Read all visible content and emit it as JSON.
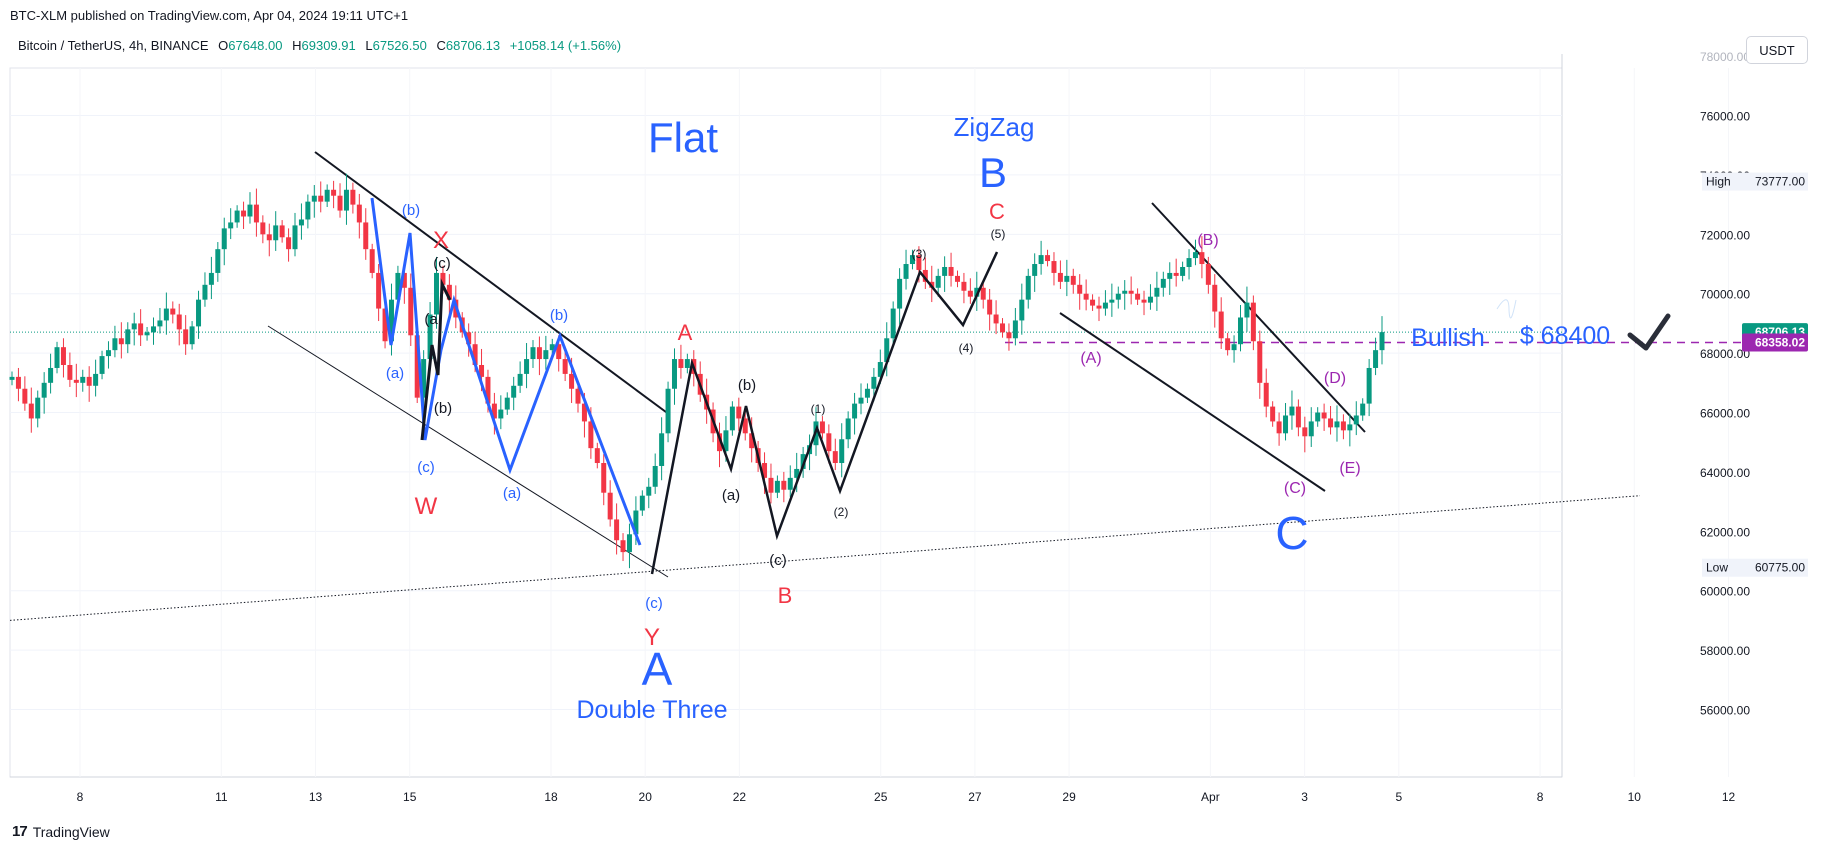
{
  "header": {
    "published": "BTC-XLM published on TradingView.com, Apr 04, 2024 19:11 UTC+1",
    "symbol": "Bitcoin / TetherUS, 4h, BINANCE",
    "o_label": "O",
    "o": "67648.00",
    "h_label": "H",
    "h": "69309.91",
    "l_label": "L",
    "l": "67526.50",
    "c_label": "C",
    "c": "68706.13",
    "change": "+1058.14 (+1.56%)",
    "currency": "USDT"
  },
  "footer": {
    "brand": "TradingView",
    "logo": "17"
  },
  "colors": {
    "up": "#089981",
    "down": "#f23645",
    "blue": "#2962ff",
    "red": "#f23645",
    "purple": "#9c27b0"
  },
  "chart_data": {
    "type": "candlestick",
    "title": "Bitcoin / TetherUS, 4h, BINANCE",
    "ylim": [
      53000,
      78500
    ],
    "y_ticks": [
      "76000.00",
      "74000.00",
      "72000.00",
      "70000.00",
      "68000.00",
      "66000.00",
      "64000.00",
      "62000.00",
      "60000.00",
      "58000.00",
      "56000.00"
    ],
    "y_tick_values": [
      76000,
      74000,
      72000,
      70000,
      68000,
      66000,
      64000,
      62000,
      60000,
      58000,
      56000
    ],
    "top_partial_tick": "78000.00",
    "x_ticks": [
      {
        "label": "8",
        "day": 8
      },
      {
        "label": "11",
        "day": 11
      },
      {
        "label": "13",
        "day": 13
      },
      {
        "label": "15",
        "day": 15
      },
      {
        "label": "18",
        "day": 18
      },
      {
        "label": "20",
        "day": 20
      },
      {
        "label": "22",
        "day": 22
      },
      {
        "label": "25",
        "day": 25
      },
      {
        "label": "27",
        "day": 27
      },
      {
        "label": "29",
        "day": 29
      },
      {
        "label": "Apr",
        "day": 32
      },
      {
        "label": "3",
        "day": 34
      },
      {
        "label": "5",
        "day": 36
      },
      {
        "label": "8",
        "day": 39
      },
      {
        "label": "10",
        "day": 41
      },
      {
        "label": "12",
        "day": 43
      }
    ],
    "x_range_days": [
      6.4,
      43.2
    ],
    "price_tags": [
      {
        "text": "High",
        "value": "73777.00",
        "price": 73777,
        "kind": "high"
      },
      {
        "text": "Low",
        "value": "60775.00",
        "price": 60775,
        "kind": "low"
      },
      {
        "text": "",
        "value": "68706.13",
        "price": 68706,
        "kind": "last"
      },
      {
        "text": "",
        "value": "68358.02",
        "price": 68358,
        "kind": "level"
      }
    ],
    "last_price": 68706.13,
    "level_price": 68358.02,
    "closes": [
      67200,
      66800,
      66300,
      65800,
      66500,
      67000,
      67500,
      68200,
      67600,
      67100,
      67000,
      67200,
      66900,
      67300,
      67900,
      68100,
      68500,
      68300,
      68800,
      69000,
      68600,
      68700,
      68900,
      69100,
      69500,
      69300,
      68800,
      68300,
      68900,
      69800,
      70300,
      70700,
      71500,
      72200,
      72400,
      72800,
      72600,
      73000,
      72400,
      72000,
      71800,
      72300,
      71900,
      71500,
      72300,
      72500,
      73100,
      73300,
      73100,
      73500,
      73300,
      72800,
      73500,
      73000,
      72400,
      71500,
      70700,
      69500,
      68400,
      69800,
      70700,
      70200,
      68600,
      66500,
      67800,
      69300,
      70700,
      70300,
      69800,
      69200,
      68700,
      68300,
      67600,
      67200,
      66300,
      65800,
      66100,
      66500,
      66900,
      67300,
      67800,
      68200,
      67800,
      68100,
      68300,
      67800,
      67300,
      66800,
      66300,
      65700,
      64800,
      64300,
      63300,
      62400,
      61700,
      61300,
      61900,
      62700,
      63200,
      63500,
      64200,
      65300,
      66800,
      67800,
      67500,
      67800,
      67300,
      66600,
      66100,
      65300,
      64700,
      65400,
      66200,
      65800,
      65300,
      64800,
      64300,
      63800,
      63300,
      63700,
      63400,
      63800,
      64100,
      64600,
      64900,
      65700,
      65300,
      64700,
      64300,
      65100,
      65800,
      66300,
      66500,
      66800,
      67200,
      67700,
      68500,
      69500,
      70500,
      71000,
      71300,
      70800,
      70400,
      70200,
      70600,
      70900,
      70600,
      70400,
      70100,
      69900,
      70200,
      69800,
      69300,
      69000,
      68700,
      68500,
      69100,
      69800,
      70600,
      71000,
      71300,
      71100,
      70700,
      70400,
      70600,
      70300,
      70000,
      69800,
      69600,
      69500,
      69700,
      69800,
      70000,
      70100,
      70000,
      69800,
      69700,
      69900,
      70200,
      70500,
      70700,
      70600,
      70900,
      71200,
      71400,
      71000,
      70300,
      69400,
      68500,
      68100,
      68300,
      69200,
      69700,
      68400,
      67000,
      66200,
      65700,
      65300,
      65900,
      66200,
      65500,
      65200,
      65700,
      66000,
      65800,
      65500,
      65700,
      65400,
      65600,
      65900,
      66300,
      67500,
      68100,
      68706
    ],
    "annotations": {
      "degree_labels": [
        "A",
        "B",
        "C"
      ],
      "wave_labels": [
        "Flat",
        "ZigZag",
        "Double Three",
        "Bullish",
        "$ 68400"
      ],
      "corrective_labels": [
        "W",
        "X",
        "Y",
        "A",
        "B",
        "C",
        "(a)",
        "(b)",
        "(c)",
        "(1)",
        "(2)",
        "(3)",
        "(4)",
        "(5)",
        "(A)",
        "(B)",
        "(C)",
        "(D)",
        "(E)"
      ],
      "text": {
        "flat": "Flat",
        "zigzag": "ZigZag",
        "double_three": "Double Three",
        "A": "A",
        "B": "B",
        "C": "C",
        "W": "W",
        "X": "X",
        "Y": "Y",
        "a": "(a)",
        "b": "(b)",
        "c": "(c)",
        "a_short": "(a",
        "w1": "(1)",
        "w2": "(2)",
        "w3": "(3)",
        "w4": "(4)",
        "w5": "(5)",
        "cA": "(A)",
        "cB": "(B)",
        "cC": "(C)",
        "cD": "(D)",
        "cE": "(E)",
        "bullish": "Bullish",
        "target": "$ 68400"
      }
    }
  }
}
